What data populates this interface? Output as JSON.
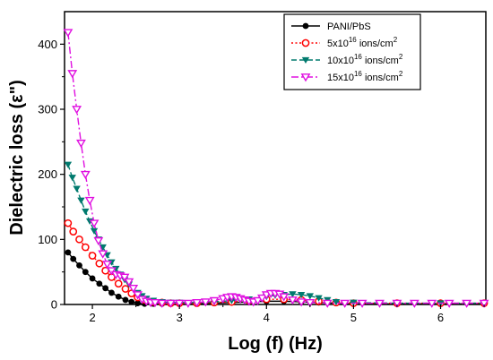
{
  "chart_data": {
    "type": "line",
    "xlabel": "Log (f) (Hz)",
    "ylabel": "Dielectric loss (ε\")",
    "xlim": [
      1.68,
      6.52
    ],
    "ylim": [
      0,
      450
    ],
    "x_ticks": [
      2,
      3,
      4,
      5,
      6
    ],
    "y_ticks": [
      0,
      100,
      200,
      300,
      400
    ],
    "grid": false,
    "legend_position": "top-right",
    "series": [
      {
        "name": "PANI/PbS",
        "color": "#000000",
        "marker": "circle-filled",
        "line_style": "solid",
        "x": [
          1.72,
          1.78,
          1.85,
          1.92,
          2.0,
          2.08,
          2.15,
          2.22,
          2.3,
          2.38,
          2.45,
          2.52,
          2.6,
          2.7,
          2.8,
          3.0,
          3.2,
          3.4,
          3.6,
          3.8,
          4.0,
          4.2,
          4.4,
          4.6,
          4.8,
          5.0,
          5.5,
          6.0,
          6.5
        ],
        "y": [
          80,
          70,
          60,
          50,
          40,
          32,
          25,
          18,
          12,
          7,
          4,
          2,
          1,
          1,
          1,
          1,
          1,
          2,
          3,
          4,
          5,
          5,
          4,
          3,
          2,
          1,
          1,
          1,
          1
        ]
      },
      {
        "name": "5x10^16 ions/cm^2",
        "name_prefix": "5x10",
        "name_sup": "16",
        "name_mid": " ions/cm",
        "name_sup2": "2",
        "color": "#ff0000",
        "marker": "circle-open",
        "line_style": "dotted",
        "x": [
          1.72,
          1.78,
          1.85,
          1.92,
          2.0,
          2.08,
          2.15,
          2.22,
          2.3,
          2.38,
          2.45,
          2.52,
          2.6,
          2.7,
          2.8,
          2.9,
          3.0,
          3.2,
          3.4,
          3.6,
          3.8,
          4.0,
          4.2,
          4.4,
          4.6,
          4.8,
          5.0,
          5.5,
          6.0,
          6.5
        ],
        "y": [
          125,
          112,
          100,
          88,
          75,
          63,
          52,
          42,
          32,
          24,
          17,
          11,
          7,
          4,
          3,
          2,
          2,
          2,
          3,
          4,
          6,
          8,
          8,
          7,
          5,
          3,
          2,
          2,
          2,
          2
        ]
      },
      {
        "name": "10x10^16 ions/cm^2",
        "name_prefix": "10x10",
        "name_sup": "16",
        "name_mid": " ions/cm",
        "name_sup2": "2",
        "color": "#007a6e",
        "marker": "triangle-down-filled",
        "line_style": "dashed",
        "x": [
          1.72,
          1.77,
          1.82,
          1.87,
          1.92,
          1.97,
          2.02,
          2.07,
          2.12,
          2.17,
          2.22,
          2.27,
          2.32,
          2.37,
          2.42,
          2.47,
          2.52,
          2.57,
          2.62,
          2.7,
          2.8,
          2.9,
          3.0,
          3.2,
          3.4,
          3.6,
          3.8,
          4.0,
          4.1,
          4.2,
          4.3,
          4.4,
          4.5,
          4.6,
          4.7,
          4.8,
          5.0,
          5.5,
          6.0,
          6.5
        ],
        "y": [
          215,
          195,
          178,
          160,
          143,
          128,
          113,
          100,
          88,
          76,
          65,
          55,
          46,
          38,
          31,
          24,
          18,
          13,
          9,
          6,
          4,
          3,
          3,
          3,
          4,
          6,
          8,
          12,
          14,
          15,
          16,
          15,
          13,
          10,
          7,
          4,
          3,
          2,
          2,
          2
        ]
      },
      {
        "name": "15x10^16 ions/cm^2",
        "name_prefix": "15x10",
        "name_sup": "16",
        "name_mid": " ions/cm",
        "name_sup2": "2",
        "color": "#e010e0",
        "marker": "triangle-down-open",
        "line_style": "dashdot",
        "x": [
          1.72,
          1.77,
          1.82,
          1.87,
          1.92,
          1.97,
          2.02,
          2.07,
          2.12,
          2.17,
          2.22,
          2.27,
          2.32,
          2.37,
          2.42,
          2.47,
          2.52,
          2.57,
          2.62,
          2.67,
          2.72,
          2.8,
          2.9,
          3.0,
          3.1,
          3.2,
          3.3,
          3.4,
          3.5,
          3.55,
          3.6,
          3.65,
          3.7,
          3.75,
          3.8,
          3.85,
          3.9,
          3.95,
          4.0,
          4.05,
          4.1,
          4.15,
          4.2,
          4.3,
          4.4,
          4.5,
          4.7,
          4.9,
          5.1,
          5.3,
          5.5,
          5.7,
          5.9,
          6.1,
          6.3,
          6.5
        ],
        "y": [
          418,
          355,
          300,
          248,
          200,
          160,
          125,
          98,
          78,
          62,
          52,
          46,
          44,
          42,
          35,
          25,
          15,
          8,
          5,
          3,
          3,
          2,
          2,
          2,
          2,
          3,
          4,
          6,
          9,
          11,
          12,
          11,
          9,
          7,
          5,
          4,
          6,
          10,
          15,
          17,
          17,
          16,
          12,
          7,
          4,
          3,
          2,
          2,
          2,
          2,
          2,
          2,
          2,
          2,
          2,
          2
        ]
      }
    ]
  }
}
